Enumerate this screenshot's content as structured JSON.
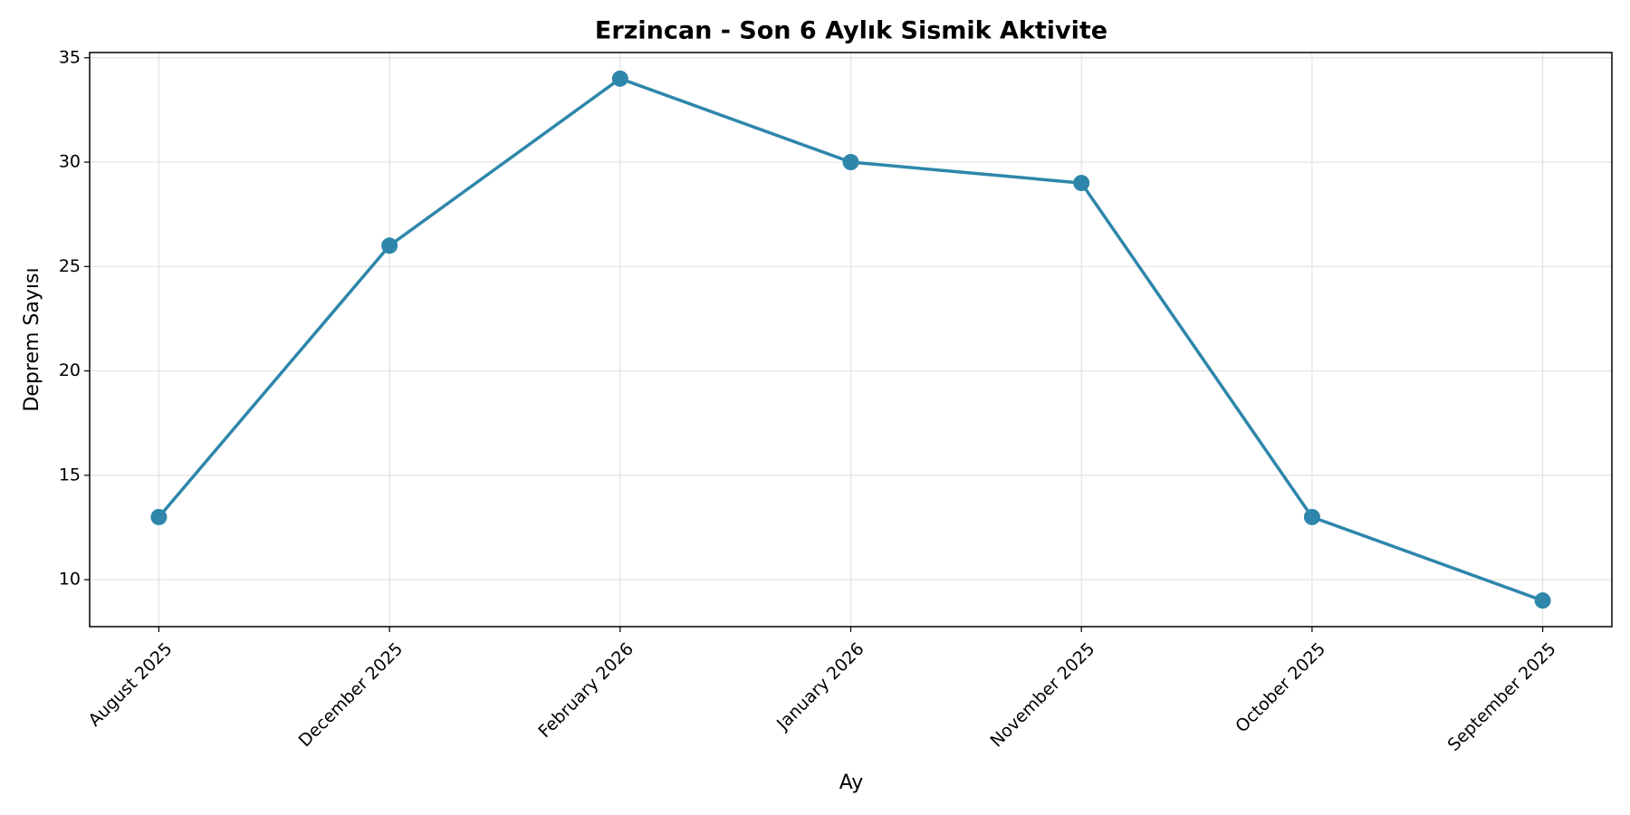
{
  "chart_data": {
    "type": "line",
    "title": "Erzincan - Son 6 Aylık Sismik Aktivite",
    "xlabel": "Ay",
    "ylabel": "Deprem Sayısı",
    "categories": [
      "August 2025",
      "December 2025",
      "February 2026",
      "January 2026",
      "November 2025",
      "October 2025",
      "September 2025"
    ],
    "values": [
      13,
      26,
      34,
      30,
      29,
      13,
      9
    ],
    "color": "#2e86ab",
    "ylim": [
      7.75,
      35.25
    ],
    "yticks": [
      10,
      15,
      20,
      25,
      30,
      35
    ],
    "grid": true
  }
}
